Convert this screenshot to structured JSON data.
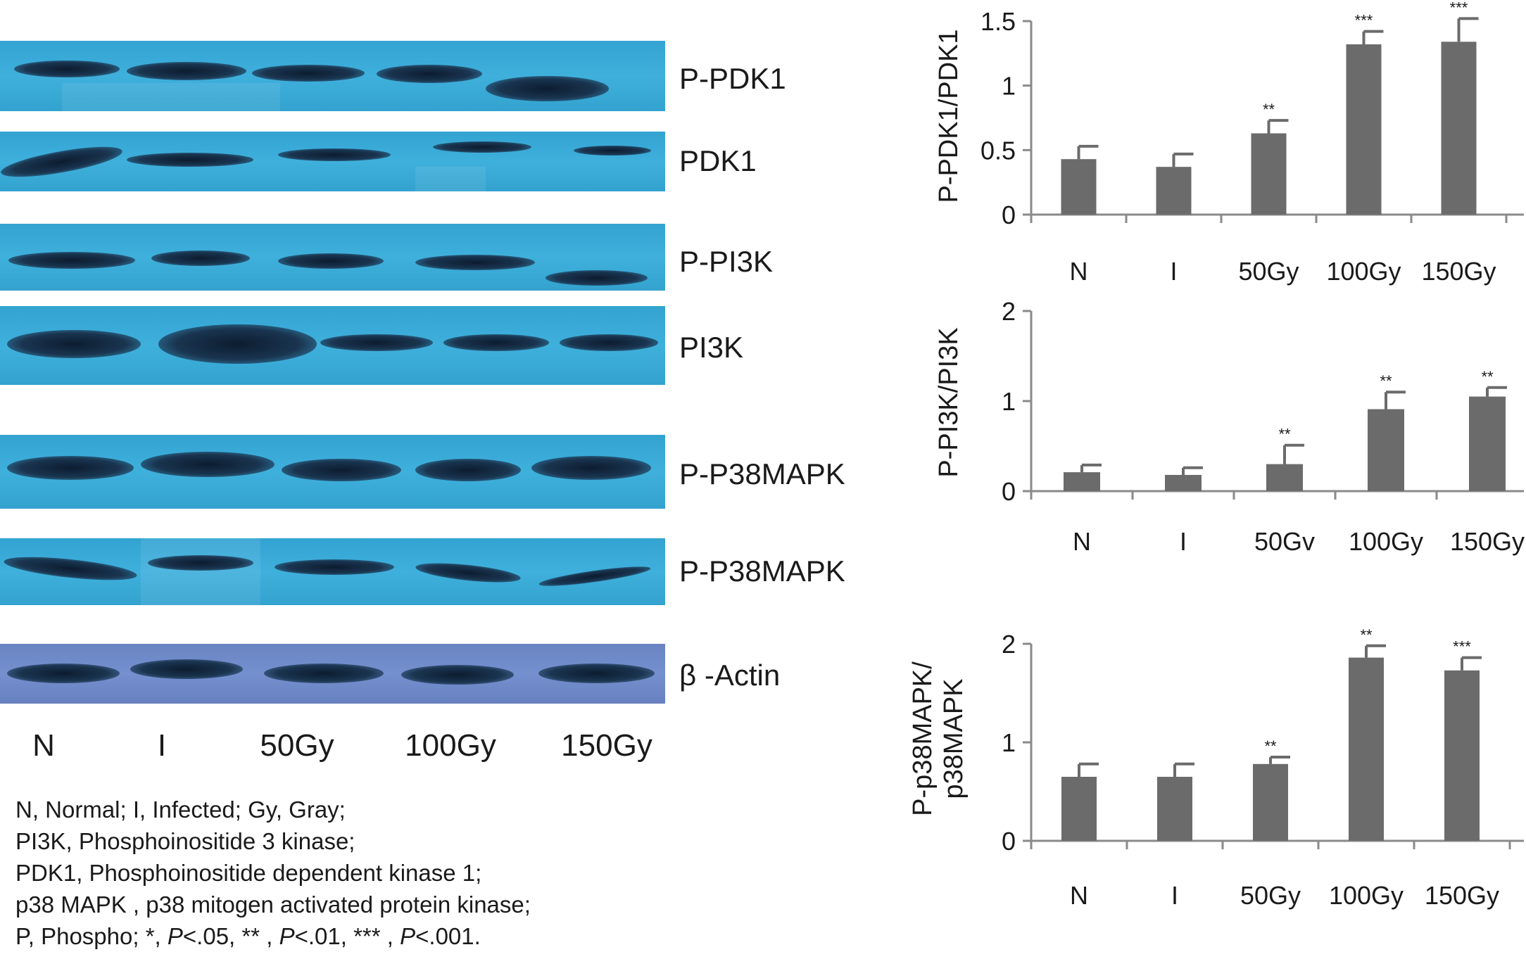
{
  "blots": [
    {
      "label": "P-PDK1"
    },
    {
      "label": "PDK1"
    },
    {
      "label": "P-PI3K"
    },
    {
      "label": "PI3K"
    },
    {
      "label": "P-P38MAPK"
    },
    {
      "label": "P-P38MAPK"
    },
    {
      "label": "β -Actin"
    }
  ],
  "lanes": [
    "N",
    "I",
    "50Gy",
    "100Gy",
    "150Gy"
  ],
  "legend": [
    {
      "text": "N, Normal; I, Infected; Gy, Gray;"
    },
    {
      "text": "PI3K, Phosphoinositide 3 kinase;"
    },
    {
      "text": "PDK1, Phosphoinositide dependent kinase 1;"
    },
    {
      "text": "p38 MAPK , p38 mitogen activated protein kinase;"
    },
    {
      "parts": [
        "P, Phospho; *, ",
        "P",
        "<.05, ** , ",
        "P",
        "<.01, *** , ",
        "P",
        "<.001."
      ]
    }
  ],
  "colors": {
    "bar": "#6b6b6b",
    "axis": "#8a8a8a",
    "membrane": "#3aaad8",
    "actin_membrane": "#7088c8",
    "band": "#14263a"
  },
  "chart_data": [
    {
      "type": "bar",
      "ylabel": "P-PDK1/PDK1",
      "categories": [
        "N",
        "I",
        "50Gy",
        "100Gy",
        "150Gy"
      ],
      "values": [
        0.43,
        0.37,
        0.63,
        1.32,
        1.34
      ],
      "errors": [
        0.1,
        0.1,
        0.1,
        0.1,
        0.18
      ],
      "significance": [
        "",
        "",
        "**",
        "***",
        "***"
      ],
      "ylim": [
        0,
        1.5
      ],
      "yticks": [
        "0",
        "0.5",
        "1",
        "1.5"
      ],
      "grid": false
    },
    {
      "type": "bar",
      "ylabel": "P-PI3K/PI3K",
      "categories": [
        "N",
        "I",
        "50Gv",
        "100Gy",
        "150Gy"
      ],
      "values": [
        0.21,
        0.18,
        0.3,
        0.91,
        1.05
      ],
      "errors": [
        0.08,
        0.08,
        0.21,
        0.19,
        0.1
      ],
      "significance": [
        "",
        "",
        "**",
        "**",
        "**"
      ],
      "ylim": [
        0,
        2
      ],
      "yticks": [
        "0",
        "1",
        "2"
      ],
      "grid": false
    },
    {
      "type": "bar",
      "ylabel": "P-p38MAPK/ p38MAPK",
      "ylabel_lines": [
        "P-p38MAPK/",
        "p38MAPK"
      ],
      "categories": [
        "N",
        "I",
        "50Gy",
        "100Gy",
        "150Gy"
      ],
      "values": [
        0.65,
        0.65,
        0.78,
        1.86,
        1.73
      ],
      "errors": [
        0.13,
        0.13,
        0.07,
        0.12,
        0.13
      ],
      "significance": [
        "",
        "",
        "**",
        "**",
        "***"
      ],
      "ylim": [
        0,
        2
      ],
      "yticks": [
        "0",
        "1",
        "2"
      ],
      "grid": false
    }
  ]
}
